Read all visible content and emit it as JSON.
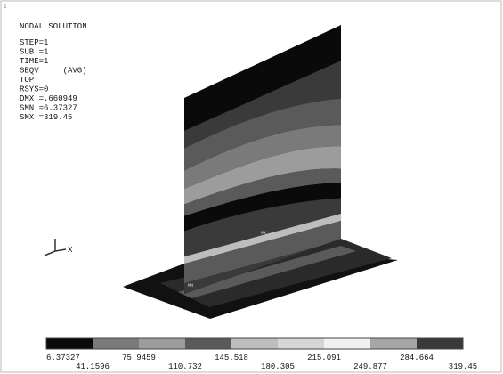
{
  "window_number": "1",
  "header": {
    "title": "NODAL SOLUTION",
    "lines": [
      "STEP=1",
      "SUB =1",
      "TIME=1",
      "SEQV     (AVG)",
      "TOP",
      "RSYS=0",
      "DMX =.660949",
      "SMN =6.37327",
      "SMX =319.45"
    ]
  },
  "plot": {
    "max_label": "MX",
    "min_label": "MN",
    "axis_label": "X"
  },
  "legend": {
    "colors": [
      "#0a0a0a",
      "#7a7a7a",
      "#9c9c9c",
      "#5a5a5a",
      "#bdbdbd",
      "#d6d6d6",
      "#f2f2f2",
      "#a6a6a6",
      "#3a3a3a"
    ],
    "values": [
      "6.37327",
      "41.1596",
      "75.9459",
      "110.732",
      "145.518",
      "180.305",
      "215.091",
      "249.877",
      "284.664",
      "319.45"
    ]
  }
}
